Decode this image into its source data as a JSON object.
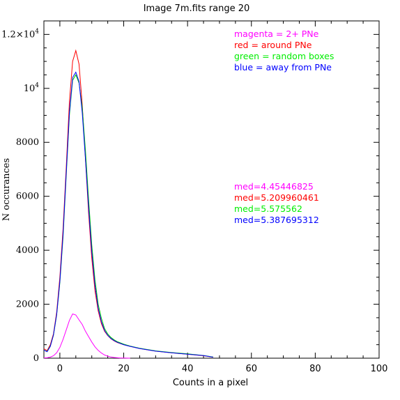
{
  "chart_data": {
    "type": "line",
    "title": "Image 7m.fits   range 20",
    "xlabel": "Counts in a pixel",
    "ylabel": "N occurances",
    "xlim": [
      -5,
      100
    ],
    "ylim": [
      0,
      12500
    ],
    "x_ticks": [
      {
        "value": 0,
        "label": "0"
      },
      {
        "value": 20,
        "label": "20"
      },
      {
        "value": 40,
        "label": "40"
      },
      {
        "value": 60,
        "label": "60"
      },
      {
        "value": 80,
        "label": "80"
      },
      {
        "value": 100,
        "label": "100"
      }
    ],
    "y_ticks": [
      {
        "value": 0,
        "label": "0"
      },
      {
        "value": 2000,
        "label": "2000"
      },
      {
        "value": 4000,
        "label": "4000"
      },
      {
        "value": 6000,
        "label": "6000"
      },
      {
        "value": 8000,
        "label": "8000"
      },
      {
        "value": 10000,
        "label": "10",
        "sup": "4"
      },
      {
        "value": 12000,
        "label": "1.2×10",
        "sup": "4"
      }
    ],
    "grid": false,
    "legend": [
      {
        "text": "magenta = 2+ PNe",
        "color": "#ff00ff"
      },
      {
        "text": "red = around PNe",
        "color": "#ff0000"
      },
      {
        "text": "green = random boxes",
        "color": "#00ee00"
      },
      {
        "text": "blue = away from PNe",
        "color": "#0000ff"
      }
    ],
    "medians": [
      {
        "text": "med=4.45446825",
        "color": "#ff00ff"
      },
      {
        "text": "med=5.209960461",
        "color": "#ff0000"
      },
      {
        "text": "med=5.575562",
        "color": "#00ee00"
      },
      {
        "text": "med=5.387695312",
        "color": "#0000ff"
      }
    ],
    "series": [
      {
        "color": "#ff00ff",
        "x": [
          -5,
          -4,
          -3,
          -2,
          -1,
          0,
          1,
          2,
          3,
          4,
          5,
          6,
          7,
          8,
          9,
          10,
          11,
          12,
          13,
          14,
          15,
          16,
          17,
          18,
          19,
          20,
          22
        ],
        "y": [
          10,
          15,
          40,
          90,
          200,
          400,
          700,
          1050,
          1400,
          1640,
          1600,
          1420,
          1250,
          1000,
          800,
          600,
          420,
          290,
          190,
          120,
          75,
          45,
          25,
          15,
          8,
          4,
          0
        ]
      },
      {
        "color": "#ff0000",
        "x": [
          -5,
          -4,
          -3,
          -2,
          -1,
          0,
          1,
          2,
          3,
          4,
          5,
          6,
          7,
          8,
          9,
          10,
          11,
          12,
          13,
          14,
          15,
          16,
          17,
          18,
          20,
          22,
          25,
          28,
          30,
          35,
          40,
          45,
          48
        ],
        "y": [
          350,
          280,
          500,
          900,
          1700,
          3000,
          4800,
          7100,
          9500,
          11000,
          11400,
          10900,
          9400,
          7400,
          5400,
          3700,
          2500,
          1750,
          1280,
          1000,
          840,
          720,
          640,
          580,
          500,
          440,
          360,
          300,
          260,
          200,
          150,
          90,
          40
        ]
      },
      {
        "color": "#00cc00",
        "x": [
          -5,
          -4,
          -3,
          -2,
          -1,
          0,
          1,
          2,
          3,
          4,
          5,
          6,
          7,
          8,
          9,
          10,
          11,
          12,
          13,
          14,
          15,
          16,
          17,
          18,
          20,
          22,
          25,
          28,
          30,
          35,
          40,
          45,
          48
        ],
        "y": [
          300,
          250,
          450,
          850,
          1600,
          2800,
          4500,
          6800,
          9000,
          10300,
          10500,
          10200,
          9300,
          7700,
          5900,
          4200,
          2900,
          2000,
          1480,
          1100,
          900,
          770,
          680,
          610,
          520,
          450,
          370,
          310,
          270,
          210,
          160,
          100,
          45
        ]
      },
      {
        "color": "#0000ff",
        "x": [
          -5,
          -4,
          -3,
          -2,
          -1,
          0,
          1,
          2,
          3,
          4,
          5,
          6,
          7,
          8,
          9,
          10,
          11,
          12,
          13,
          14,
          15,
          16,
          17,
          18,
          20,
          22,
          25,
          28,
          30,
          35,
          40,
          45,
          48
        ],
        "y": [
          300,
          240,
          440,
          860,
          1620,
          2850,
          4600,
          6900,
          9100,
          10400,
          10600,
          10250,
          9100,
          7400,
          5600,
          3950,
          2700,
          1850,
          1350,
          1030,
          850,
          730,
          650,
          590,
          500,
          440,
          360,
          300,
          260,
          200,
          150,
          95,
          40
        ]
      }
    ]
  }
}
